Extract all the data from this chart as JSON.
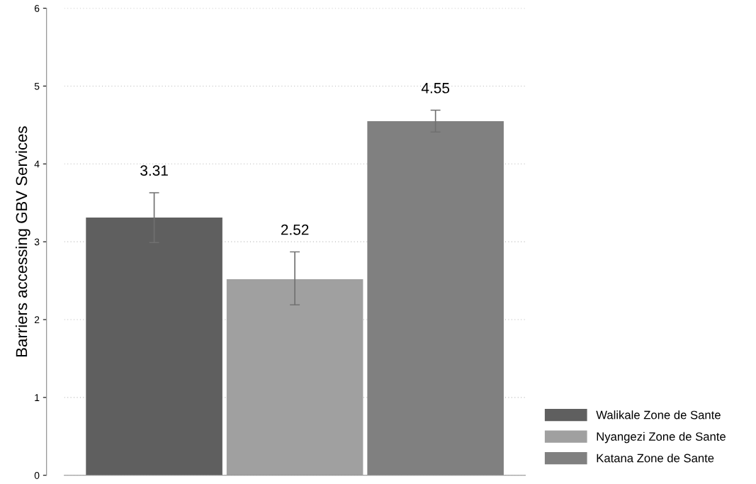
{
  "chart_data": {
    "type": "bar",
    "ylabel": "Barriers accessing GBV Services",
    "categories": [
      null
    ],
    "series": [
      {
        "name": "Walikale Zone de Sante",
        "color": "#5f5f5f",
        "values": [
          3.31
        ],
        "errors": [
          [
            2.99,
            3.63
          ]
        ]
      },
      {
        "name": "Nyangezi Zone de Sante",
        "color": "#a0a0a0",
        "values": [
          2.52
        ],
        "errors": [
          [
            2.19,
            2.87
          ]
        ]
      },
      {
        "name": "Katana Zone de Sante",
        "color": "#808080",
        "values": [
          4.55
        ],
        "errors": [
          [
            4.41,
            4.69
          ]
        ]
      }
    ],
    "ylim": [
      0,
      6
    ],
    "yticks": [
      0,
      1,
      2,
      3,
      4,
      5,
      6
    ],
    "grid": "y",
    "legend": "bottom right",
    "data_labels": true
  }
}
